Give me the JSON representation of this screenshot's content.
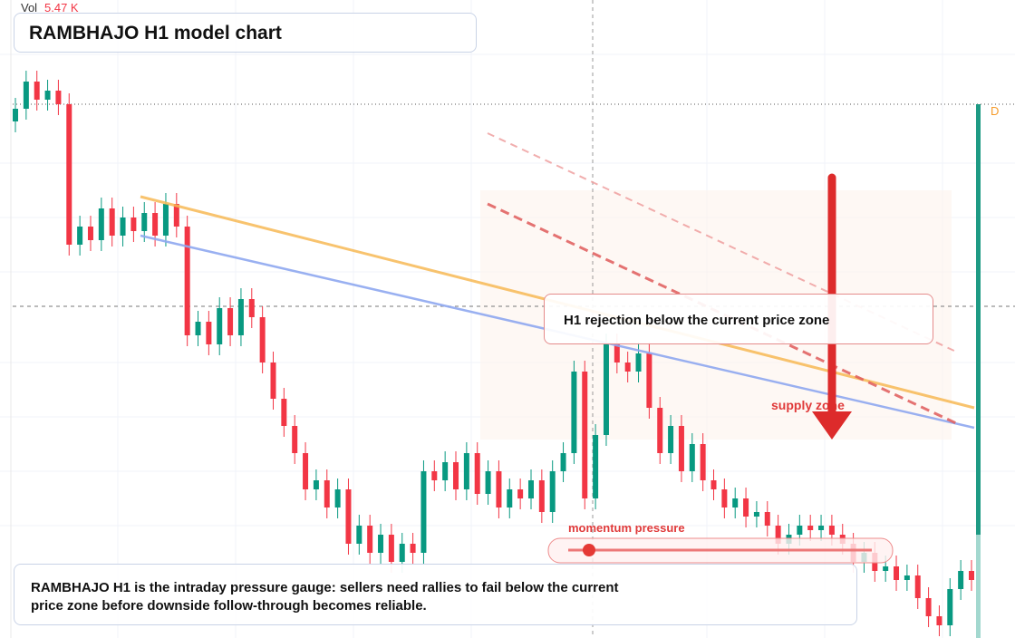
{
  "chart_data": {
    "type": "candlestick",
    "title": "RAMBHAJO H1 model chart",
    "volume_label": "Vol",
    "volume_value": "5.47 K",
    "annotation": "H1 rejection below the current price zone",
    "zone_label": "supply zone",
    "gauge_label": "momentum pressure",
    "description": "RAMBHAJO H1 is the intraday pressure gauge: sellers need rallies to fail below the current price zone before downside follow-through becomes reliable.",
    "interval_badge": "D",
    "up_color": "#089981",
    "down_color": "#f23645",
    "ylim": [
      0,
      704
    ],
    "open": [
      570,
      584,
      614,
      594,
      604,
      589,
      434,
      454,
      439,
      474,
      444,
      464,
      449,
      469,
      444,
      479,
      454,
      334,
      349,
      324,
      364,
      334,
      374,
      354,
      304,
      264,
      234,
      204,
      164,
      174,
      144,
      164,
      104,
      124,
      94,
      114,
      84,
      104,
      94,
      184,
      174,
      194,
      164,
      204,
      159,
      184,
      144,
      164,
      154,
      174,
      139,
      184,
      204,
      294,
      154,
      224,
      324,
      304,
      294,
      314,
      254,
      204,
      234,
      184,
      214,
      174,
      164,
      144,
      154,
      134,
      139,
      124,
      104,
      114,
      124,
      119,
      124,
      114,
      104,
      84,
      94,
      74,
      79,
      64,
      69,
      44,
      24,
      14,
      54,
      74
    ],
    "high": [
      596,
      626,
      626,
      616,
      616,
      601,
      466,
      466,
      486,
      486,
      476,
      476,
      481,
      481,
      491,
      491,
      466,
      361,
      361,
      376,
      376,
      386,
      386,
      366,
      316,
      276,
      246,
      216,
      186,
      186,
      176,
      176,
      136,
      136,
      126,
      126,
      116,
      116,
      196,
      196,
      206,
      206,
      216,
      216,
      196,
      196,
      176,
      176,
      186,
      186,
      196,
      216,
      306,
      306,
      236,
      336,
      336,
      316,
      326,
      326,
      266,
      246,
      246,
      226,
      226,
      186,
      176,
      166,
      166,
      151,
      151,
      136,
      126,
      136,
      136,
      136,
      136,
      126,
      116,
      106,
      106,
      91,
      91,
      81,
      81,
      56,
      36,
      66,
      86,
      86
    ],
    "low": [
      558,
      572,
      582,
      582,
      577,
      422,
      422,
      427,
      427,
      432,
      432,
      437,
      437,
      432,
      432,
      442,
      322,
      322,
      312,
      312,
      322,
      322,
      342,
      292,
      252,
      222,
      192,
      152,
      152,
      132,
      132,
      92,
      92,
      82,
      82,
      72,
      72,
      82,
      82,
      162,
      162,
      152,
      152,
      147,
      147,
      132,
      132,
      142,
      142,
      127,
      127,
      172,
      192,
      142,
      142,
      212,
      292,
      282,
      282,
      242,
      192,
      192,
      172,
      172,
      162,
      152,
      132,
      132,
      122,
      122,
      112,
      92,
      92,
      102,
      107,
      107,
      102,
      92,
      72,
      72,
      62,
      62,
      52,
      52,
      32,
      12,
      2,
      2,
      42,
      52
    ],
    "close": [
      584,
      614,
      594,
      604,
      589,
      434,
      454,
      439,
      474,
      444,
      464,
      449,
      469,
      444,
      479,
      454,
      334,
      349,
      324,
      364,
      334,
      374,
      354,
      304,
      264,
      234,
      204,
      164,
      174,
      144,
      164,
      104,
      124,
      94,
      114,
      84,
      104,
      94,
      184,
      174,
      194,
      164,
      204,
      159,
      184,
      144,
      164,
      154,
      174,
      139,
      184,
      204,
      294,
      154,
      224,
      324,
      304,
      294,
      314,
      254,
      204,
      234,
      184,
      214,
      174,
      164,
      144,
      154,
      134,
      139,
      124,
      104,
      114,
      124,
      119,
      124,
      114,
      104,
      84,
      94,
      74,
      79,
      64,
      69,
      44,
      24,
      14,
      54,
      74,
      64
    ]
  }
}
